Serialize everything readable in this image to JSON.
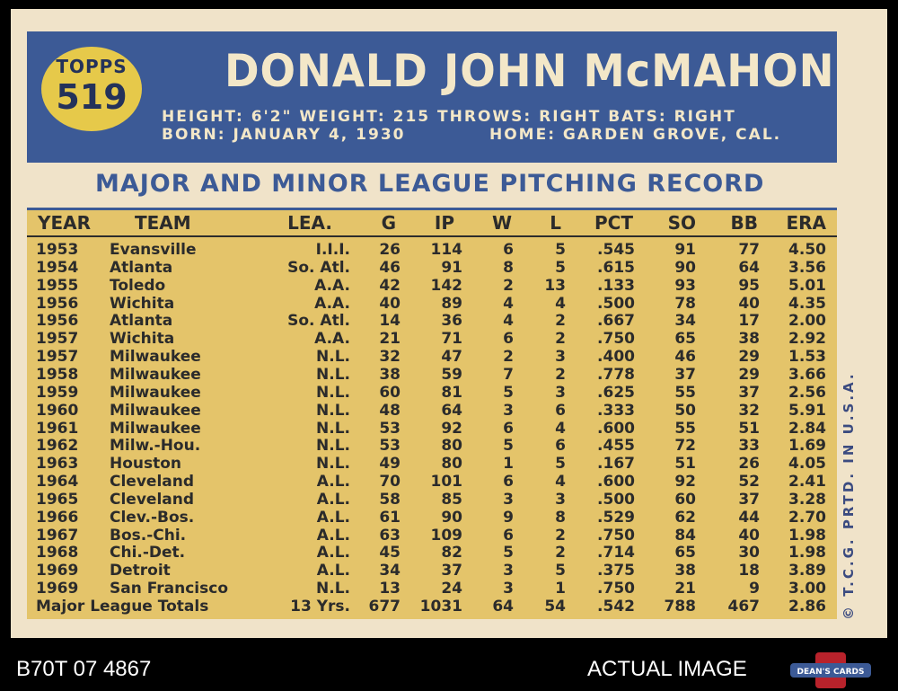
{
  "card": {
    "brand": "TOPPS",
    "number": "519",
    "player_name": "DONALD JOHN McMAHON",
    "bio_line1": "HEIGHT: 6'2\"   WEIGHT: 215   THROWS: RIGHT   BATS: RIGHT",
    "born": "BORN: JANUARY 4, 1930",
    "home": "HOME: GARDEN GROVE, CAL.",
    "record_title": "MAJOR AND MINOR LEAGUE PITCHING RECORD",
    "copyright": "© T.C.G. PRTD. IN U.S.A."
  },
  "table": {
    "headers": [
      "YEAR",
      "TEAM",
      "LEA.",
      "G",
      "IP",
      "W",
      "L",
      "PCT",
      "SO",
      "BB",
      "ERA"
    ],
    "rows": [
      [
        "1953",
        "Evansville",
        "I.I.I.",
        "26",
        "114",
        "6",
        "5",
        ".545",
        "91",
        "77",
        "4.50"
      ],
      [
        "1954",
        "Atlanta",
        "So. Atl.",
        "46",
        "91",
        "8",
        "5",
        ".615",
        "90",
        "64",
        "3.56"
      ],
      [
        "1955",
        "Toledo",
        "A.A.",
        "42",
        "142",
        "2",
        "13",
        ".133",
        "93",
        "95",
        "5.01"
      ],
      [
        "1956",
        "Wichita",
        "A.A.",
        "40",
        "89",
        "4",
        "4",
        ".500",
        "78",
        "40",
        "4.35"
      ],
      [
        "1956",
        "Atlanta",
        "So. Atl.",
        "14",
        "36",
        "4",
        "2",
        ".667",
        "34",
        "17",
        "2.00"
      ],
      [
        "1957",
        "Wichita",
        "A.A.",
        "21",
        "71",
        "6",
        "2",
        ".750",
        "65",
        "38",
        "2.92"
      ],
      [
        "1957",
        "Milwaukee",
        "N.L.",
        "32",
        "47",
        "2",
        "3",
        ".400",
        "46",
        "29",
        "1.53"
      ],
      [
        "1958",
        "Milwaukee",
        "N.L.",
        "38",
        "59",
        "7",
        "2",
        ".778",
        "37",
        "29",
        "3.66"
      ],
      [
        "1959",
        "Milwaukee",
        "N.L.",
        "60",
        "81",
        "5",
        "3",
        ".625",
        "55",
        "37",
        "2.56"
      ],
      [
        "1960",
        "Milwaukee",
        "N.L.",
        "48",
        "64",
        "3",
        "6",
        ".333",
        "50",
        "32",
        "5.91"
      ],
      [
        "1961",
        "Milwaukee",
        "N.L.",
        "53",
        "92",
        "6",
        "4",
        ".600",
        "55",
        "51",
        "2.84"
      ],
      [
        "1962",
        "Milw.-Hou.",
        "N.L.",
        "53",
        "80",
        "5",
        "6",
        ".455",
        "72",
        "33",
        "1.69"
      ],
      [
        "1963",
        "Houston",
        "N.L.",
        "49",
        "80",
        "1",
        "5",
        ".167",
        "51",
        "26",
        "4.05"
      ],
      [
        "1964",
        "Cleveland",
        "A.L.",
        "70",
        "101",
        "6",
        "4",
        ".600",
        "92",
        "52",
        "2.41"
      ],
      [
        "1965",
        "Cleveland",
        "A.L.",
        "58",
        "85",
        "3",
        "3",
        ".500",
        "60",
        "37",
        "3.28"
      ],
      [
        "1966",
        "Clev.-Bos.",
        "A.L.",
        "61",
        "90",
        "9",
        "8",
        ".529",
        "62",
        "44",
        "2.70"
      ],
      [
        "1967",
        "Bos.-Chi.",
        "A.L.",
        "63",
        "109",
        "6",
        "2",
        ".750",
        "84",
        "40",
        "1.98"
      ],
      [
        "1968",
        "Chi.-Det.",
        "A.L.",
        "45",
        "82",
        "5",
        "2",
        ".714",
        "65",
        "30",
        "1.98"
      ],
      [
        "1969",
        "Detroit",
        "A.L.",
        "34",
        "37",
        "3",
        "5",
        ".375",
        "38",
        "18",
        "3.89"
      ],
      [
        "1969",
        "San Francisco",
        "N.L.",
        "13",
        "24",
        "3",
        "1",
        ".750",
        "21",
        "9",
        "3.00"
      ]
    ],
    "totals": [
      "Major League Totals",
      "13 Yrs.",
      "677",
      "1031",
      "64",
      "54",
      ".542",
      "788",
      "467",
      "2.86"
    ]
  },
  "footer": {
    "sku": "B70T 07 4867",
    "label": "ACTUAL IMAGE",
    "logo_text": "DEAN'S CARDS"
  },
  "colors": {
    "header_blue": "#3c5a96",
    "table_yellow": "#e4c46a",
    "card_cream": "#f0e3c9",
    "logo_gold": "#e6c94a",
    "logo_red": "#b8222b"
  }
}
